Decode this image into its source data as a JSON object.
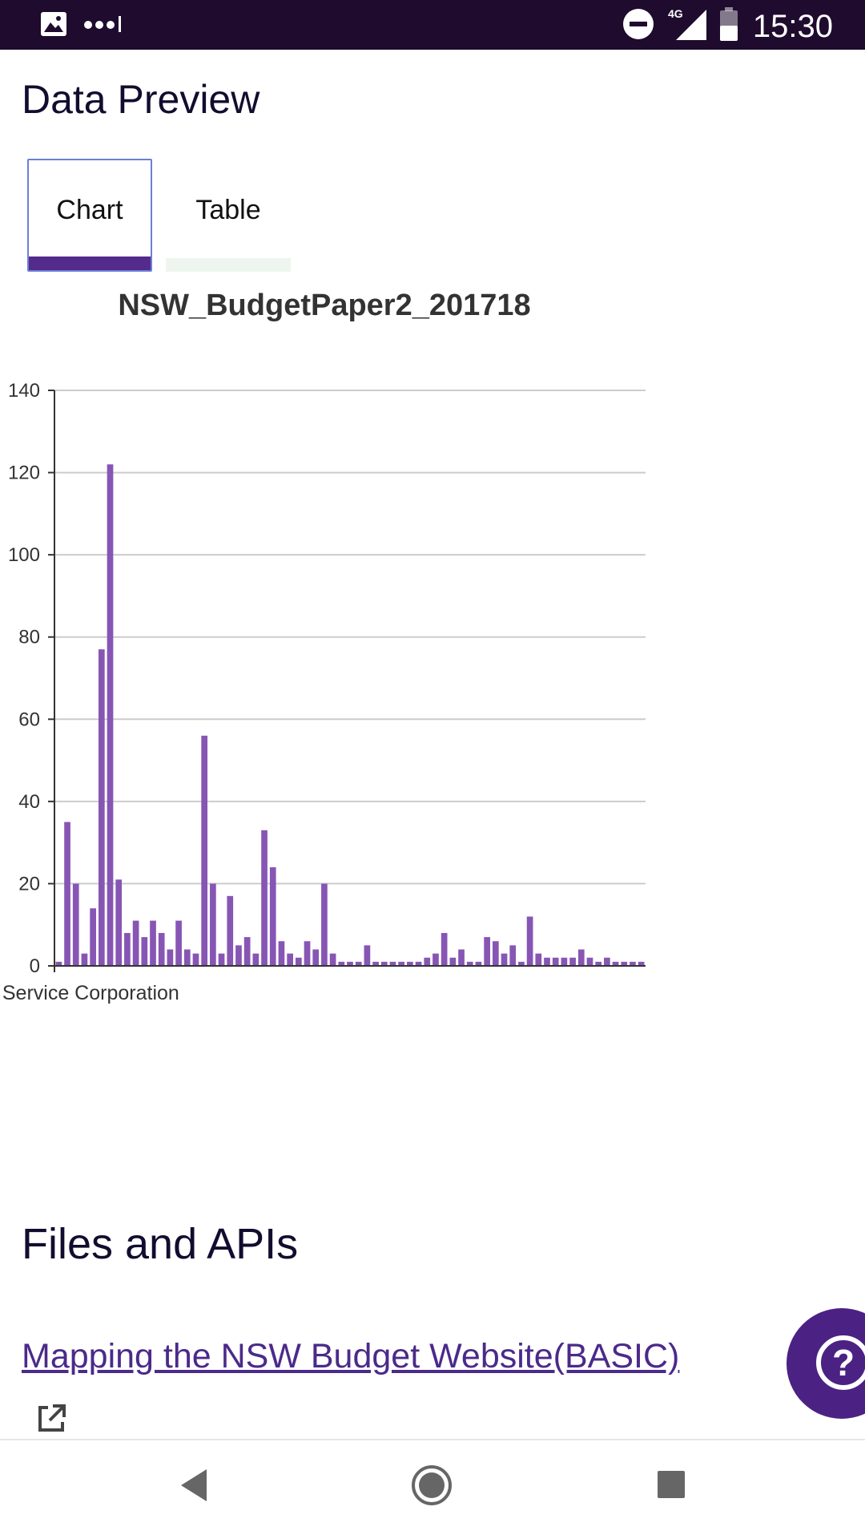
{
  "status_bar": {
    "time": "15:30",
    "network": "4G",
    "icons": [
      "image-icon",
      "signal-dots-icon",
      "do-not-disturb-icon",
      "cell-signal-icon",
      "battery-icon"
    ]
  },
  "page": {
    "title": "Data Preview"
  },
  "tabs": [
    {
      "label": "Chart",
      "selected": true
    },
    {
      "label": "Table",
      "selected": false
    }
  ],
  "colors": {
    "accent": "#532b8c",
    "bar": "#8756b4",
    "status_bar": "#1f0b2e",
    "link": "#4b2a8a"
  },
  "chart_data": {
    "type": "bar",
    "title": "NSW_BudgetPaper2_201718",
    "xlabel": "",
    "ylabel": "",
    "first_category_label": "Service Corporation",
    "ylim": [
      0,
      140
    ],
    "yticks": [
      0,
      20,
      40,
      60,
      80,
      100,
      120,
      140
    ],
    "grid": true,
    "values": [
      1,
      35,
      20,
      3,
      14,
      77,
      122,
      21,
      8,
      11,
      7,
      11,
      8,
      4,
      11,
      4,
      3,
      56,
      20,
      3,
      17,
      5,
      7,
      3,
      33,
      24,
      6,
      3,
      2,
      6,
      4,
      20,
      3,
      1,
      1,
      1,
      5,
      1,
      1,
      1,
      1,
      1,
      1,
      2,
      3,
      8,
      2,
      4,
      1,
      1,
      7,
      6,
      3,
      5,
      1,
      12,
      3,
      2,
      2,
      2,
      2,
      4,
      2,
      1,
      2,
      1,
      1,
      1,
      1
    ]
  },
  "files_section": {
    "title": "Files and APIs",
    "link_label": "Mapping the NSW Budget Website(BASIC)"
  }
}
